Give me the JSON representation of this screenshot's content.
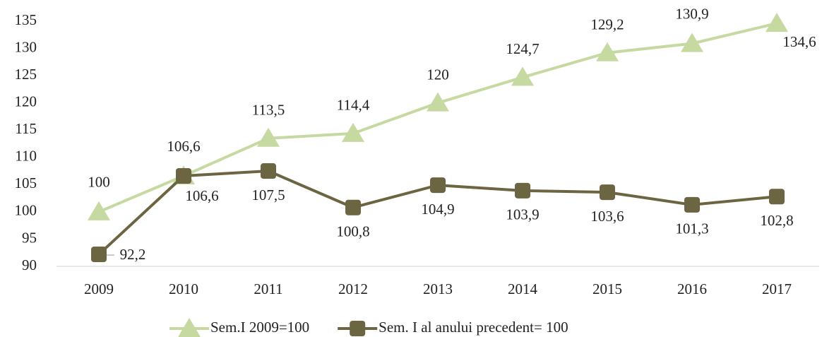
{
  "chart_data": {
    "type": "line",
    "categories": [
      "2009",
      "2010",
      "2011",
      "2012",
      "2013",
      "2014",
      "2015",
      "2016",
      "2017"
    ],
    "series": [
      {
        "name": "Sem.I 2009=100",
        "color": "#c5d9a1",
        "marker": "triangle",
        "values": [
          100,
          106.6,
          113.5,
          114.4,
          120,
          124.7,
          129.2,
          130.9,
          134.6
        ],
        "value_labels": [
          "100",
          "106,6",
          "113,5",
          "114,4",
          "120",
          "124,7",
          "129,2",
          "130,9",
          "134,6"
        ]
      },
      {
        "name": "Sem. I al anului precedent= 100",
        "color": "#6c6542",
        "marker": "square",
        "values": [
          92.2,
          106.6,
          107.5,
          100.8,
          104.9,
          103.9,
          103.6,
          101.3,
          102.8
        ],
        "value_labels": [
          "92,2",
          "106,6",
          "107,5",
          "100,8",
          "104,9",
          "103,9",
          "103,6",
          "101,3",
          "102,8"
        ]
      }
    ],
    "ylim": [
      90,
      135
    ],
    "yticks": [
      90,
      95,
      100,
      105,
      110,
      115,
      120,
      125,
      130,
      135
    ],
    "grid": false,
    "legend": "bottom"
  }
}
